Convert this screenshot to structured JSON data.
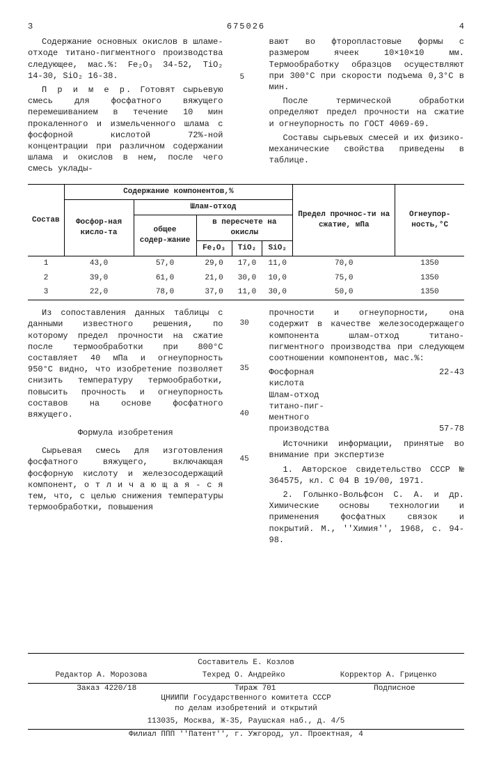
{
  "header": {
    "left_page": "3",
    "doc_number": "675026",
    "right_page": "4"
  },
  "left_para1": "Содержание основных окислов в шламе-отходе титано-пигментного производства следующее, мас.%: Fe₂O₃ 34-52, TiO₂ 14-30, SiO₂ 16-38.",
  "left_para2_label": "П р и м е р.",
  "left_para2": "Готовят сырьевую смесь для фосфатного вяжущего перемешиванием в течение 10 мин прокаленного и измельченного шлама с фосфорной кислотой 72%-ной концентрации при различном содержании шлама и окислов в нем, после чего смесь уклады-",
  "right_para1": "вают во фторопластовые формы с размером ячеек 10×10×10 мм. Термообработку образцов осуществляют при 300°С при скорости подъема 0,3°С в мин.",
  "right_para2": "После термической обработки определяют предел прочности на сжатие и огнеупорность по ГОСТ 4069-69.",
  "right_para3": "Составы сырьевых смесей и их физико-механические свойства приведены в таблице.",
  "table": {
    "h_sostav": "Состав",
    "h_content": "Содержание компонентов,%",
    "h_predel": "Предел прочнос-ти на сжатие, мПа",
    "h_ogne": "Огнеупор-ность,°С",
    "h_fosf": "Фосфор-ная кисло-та",
    "h_shlam": "Шлам-отход",
    "h_obshee": "общее содер-жание",
    "h_peres": "в пересчете на окислы",
    "h_fe": "Fe₂O₃",
    "h_ti": "TiO₂",
    "h_si": "SiO₂",
    "rows": [
      [
        "1",
        "43,0",
        "57,0",
        "29,0",
        "17,0",
        "11,0",
        "70,0",
        "1350"
      ],
      [
        "2",
        "39,0",
        "61,0",
        "21,0",
        "30,0",
        "10,0",
        "75,0",
        "1350"
      ],
      [
        "3",
        "22,0",
        "78,0",
        "37,0",
        "11,0",
        "30,0",
        "50,0",
        "1350"
      ]
    ]
  },
  "lineno": {
    "n5": "5",
    "n30": "30",
    "n35": "35",
    "n40": "40",
    "n45": "45"
  },
  "lower_left_p1": "Из сопоставления данных таблицы с данными известного решения, по которому предел прочности на сжатие после термообработки при 800°С составляет 40 мПа и огнеупорность 950°С видно, что изобретение позволяет снизить температуру термообработки, повысить прочность и огнеупорность составов на основе фосфатного вяжущего.",
  "formula_title": "Формула изобретения",
  "lower_left_p2": "Сырьевая смесь для изготовления фосфатного вяжущего, включающая фосфорную кислоту и железосодержащий компонент, о т л и ч а ю щ а я - с я  тем, что, с целью снижения температуры термообработки, повышения",
  "lower_right_p1": "прочности и огнеупорности, она содержит в качестве железосодержащего компонента шлам-отход титано-пигментного производства при следующем соотношении компонентов, мас.%:",
  "components": {
    "a_name": "Фосфорная\nкислота",
    "a_val": "22-43",
    "b_name": "Шлам-отход\nтитано-пиг-\nментного\nпроизводства",
    "b_val": "57-78"
  },
  "sources_intro": "Источники информации, принятые во внимание при экспертизе",
  "source1": "1. Авторское свидетельство СССР № 364575, кл. С 04 В 19/00, 1971.",
  "source2": "2. Голынко-Вольфсон С. А. и др. Химические основы технологии и применения фосфатных связок и покрытий. М., ''Химия'', 1968, с. 94-98.",
  "footer": {
    "compiler": "Составитель Е. Козлов",
    "editor": "Редактор А. Морозова",
    "tech": "Техред О. Андрейко",
    "corrector": "Корректор А. Гриценко",
    "order": "Заказ 4220/18",
    "tirazh": "Тираж 701",
    "podpis": "Подписное",
    "org1": "ЦНИИПИ Государственного комитета СССР",
    "org2": "по делам изобретений и открытий",
    "addr1": "113035, Москва, Ж-35, Раушская наб., д. 4/5",
    "addr2": "Филиал ППП ''Патент'', г. Ужгород, ул. Проектная, 4"
  }
}
